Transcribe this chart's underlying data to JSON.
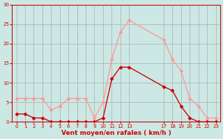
{
  "x_positions": [
    0,
    1,
    2,
    3,
    4,
    5,
    6,
    7,
    8,
    9,
    10,
    11,
    12,
    13,
    17,
    18,
    19,
    20,
    21,
    22,
    23
  ],
  "wind_avg": [
    2,
    2,
    1,
    1,
    0,
    0,
    0,
    0,
    0,
    0,
    1,
    11,
    14,
    14,
    9,
    8,
    4,
    1,
    0,
    0,
    0
  ],
  "wind_gust": [
    6,
    6,
    6,
    6,
    3,
    4,
    6,
    6,
    6,
    1,
    5,
    16,
    23,
    26,
    21,
    16,
    13,
    6,
    4,
    1,
    1
  ],
  "bg_color": "#cce8e4",
  "grid_color": "#aaaaaa",
  "line_avg_color": "#cc0000",
  "line_gust_color": "#ff9999",
  "marker": "D",
  "markersize": 2.5,
  "linewidth": 1.0,
  "ylim": [
    0,
    30
  ],
  "yticks": [
    0,
    5,
    10,
    15,
    20,
    25,
    30
  ],
  "xtick_positions": [
    0,
    1,
    2,
    3,
    4,
    5,
    6,
    7,
    8,
    9,
    10,
    11,
    12,
    13,
    17,
    18,
    19,
    20,
    21,
    22,
    23
  ],
  "xtick_labels": [
    "0",
    "1",
    "2",
    "3",
    "4",
    "5",
    "6",
    "7",
    "8",
    "9",
    "10",
    "11",
    "12",
    "13",
    "17",
    "18",
    "19",
    "20",
    "21",
    "22",
    "23"
  ],
  "xlabel": "Vent moyen/en rafales ( km/h )",
  "xlabel_color": "#cc0000",
  "tick_color": "#cc0000",
  "spine_color": "#cc0000"
}
